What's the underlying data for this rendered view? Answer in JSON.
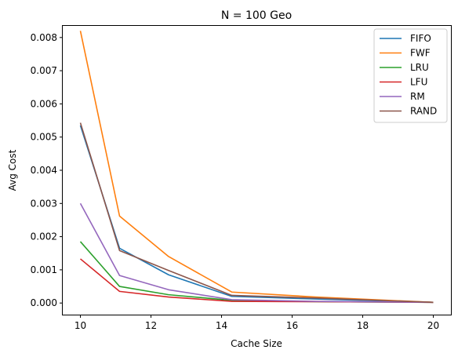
{
  "chart_data": {
    "type": "line",
    "title": "N = 100 Geo",
    "xlabel": "Cache Size",
    "ylabel": "Avg Cost",
    "xlim": [
      9.5,
      20.5
    ],
    "ylim": [
      -0.00035,
      0.00835
    ],
    "xticks": [
      10,
      12,
      14,
      16,
      18,
      20
    ],
    "xtick_labels": [
      "10",
      "12",
      "14",
      "16",
      "18",
      "20"
    ],
    "yticks": [
      0.0,
      0.001,
      0.002,
      0.003,
      0.004,
      0.005,
      0.006,
      0.007,
      0.008
    ],
    "ytick_labels": [
      "0.000",
      "0.001",
      "0.002",
      "0.003",
      "0.004",
      "0.005",
      "0.006",
      "0.007",
      "0.008"
    ],
    "grid": false,
    "legend_position": "top-right",
    "x": [
      10,
      11.11,
      12.5,
      14.29,
      16.67,
      20
    ],
    "series": [
      {
        "name": "FIFO",
        "color": "#1f77b4",
        "values": [
          0.00535,
          0.00165,
          0.00085,
          0.0002,
          0.00012,
          2e-05
        ]
      },
      {
        "name": "FWF",
        "color": "#ff7f0e",
        "values": [
          0.0082,
          0.00262,
          0.0014,
          0.00033,
          0.00018,
          2e-05
        ]
      },
      {
        "name": "LRU",
        "color": "#2ca02c",
        "values": [
          0.00185,
          0.0005,
          0.00025,
          8e-05,
          4e-05,
          2e-05
        ]
      },
      {
        "name": "LFU",
        "color": "#d62728",
        "values": [
          0.00133,
          0.00035,
          0.00018,
          5e-05,
          4e-05,
          2e-05
        ]
      },
      {
        "name": "RM",
        "color": "#9467bd",
        "values": [
          0.003,
          0.00083,
          0.0004,
          0.0001,
          5e-05,
          2e-05
        ]
      },
      {
        "name": "RAND",
        "color": "#8c564b",
        "values": [
          0.00543,
          0.00158,
          0.00098,
          0.00023,
          0.00015,
          2e-05
        ]
      }
    ]
  }
}
